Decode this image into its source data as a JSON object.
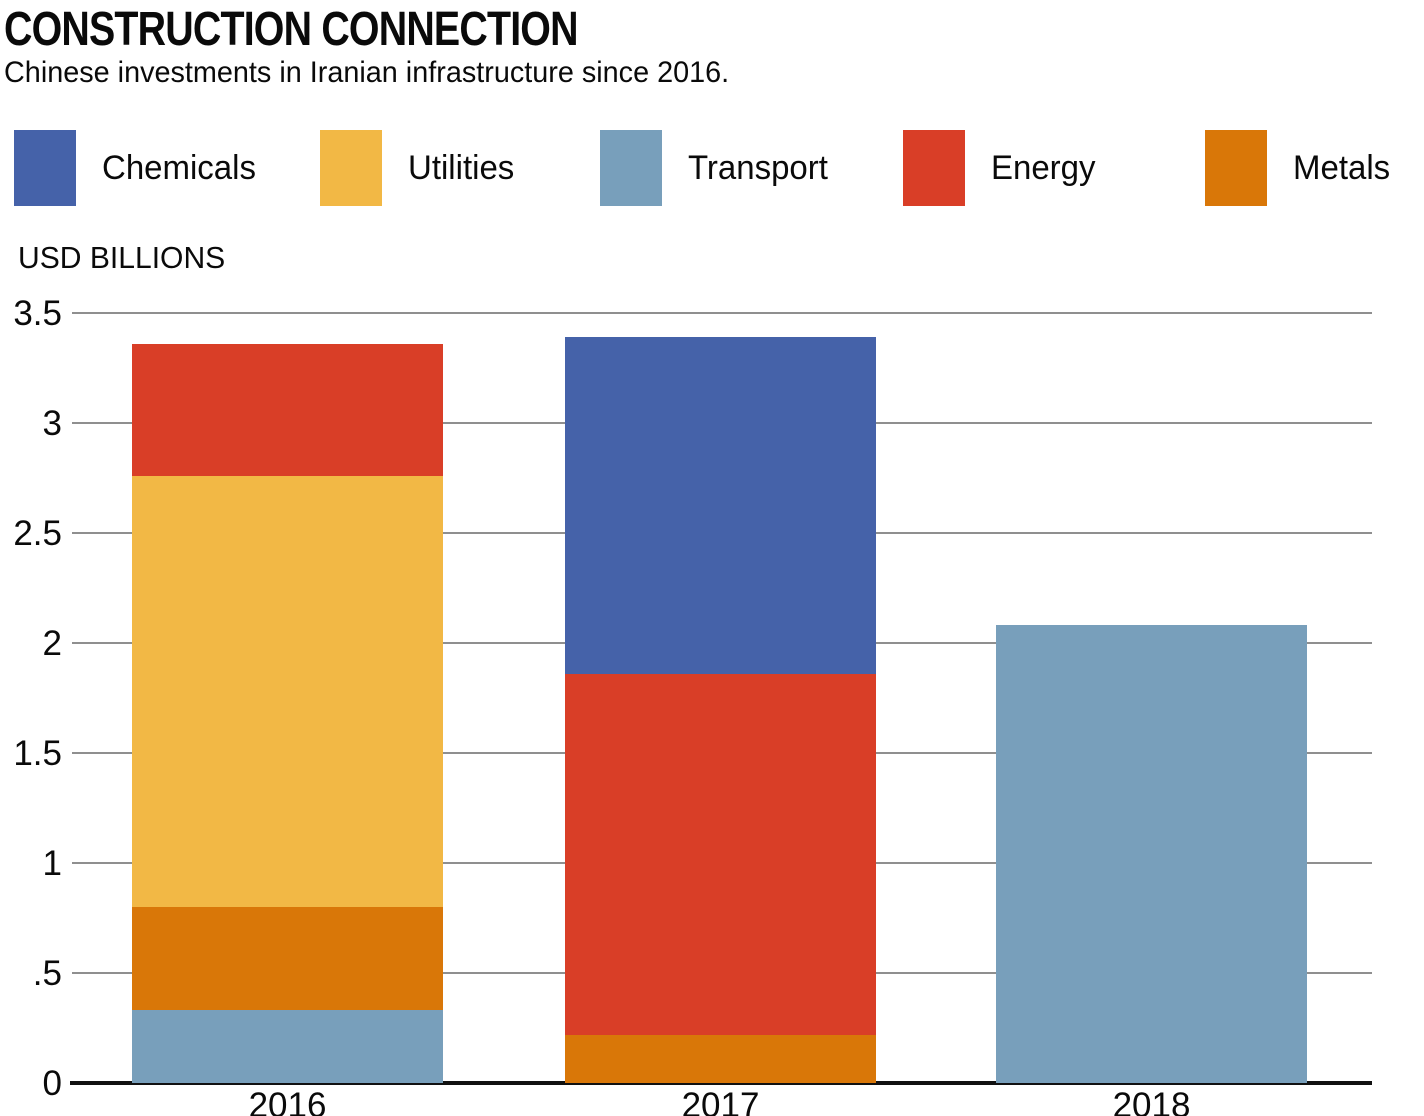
{
  "header": {
    "title": "CONSTRUCTION CONNECTION",
    "subtitle": "Chinese investments in Iranian infrastructure since 2016."
  },
  "chart_data": {
    "type": "stacked-bar",
    "title": "CONSTRUCTION CONNECTION",
    "subtitle": "Chinese investments in Iranian infrastructure since 2016.",
    "ylabel": "USD BILLIONS",
    "ylim": [
      0,
      3.5
    ],
    "ytick_interval": 0.5,
    "ytick_labels": [
      "0",
      ".5",
      "1",
      "1.5",
      "2",
      "2.5",
      "3",
      "3.5"
    ],
    "grid": "horizontal",
    "legend_position": "top",
    "legend": [
      "Chemicals",
      "Utilities",
      "Transport",
      "Energy",
      "Metals"
    ],
    "colors": {
      "Chemicals": "#4562a9",
      "Utilities": "#f2b845",
      "Transport": "#789fbb",
      "Energy": "#d93e27",
      "Metals": "#d97708"
    },
    "categories": [
      "2016",
      "2017",
      "2018"
    ],
    "bars": [
      {
        "category": "2016",
        "total": 3.36,
        "segments": [
          {
            "name": "Transport",
            "value": 0.33
          },
          {
            "name": "Metals",
            "value": 0.47
          },
          {
            "name": "Utilities",
            "value": 1.96
          },
          {
            "name": "Energy",
            "value": 0.6
          }
        ]
      },
      {
        "category": "2017",
        "total": 3.39,
        "segments": [
          {
            "name": "Metals",
            "value": 0.22
          },
          {
            "name": "Energy",
            "value": 1.64
          },
          {
            "name": "Chemicals",
            "value": 1.53
          }
        ]
      },
      {
        "category": "2018",
        "total": 2.08,
        "segments": [
          {
            "name": "Transport",
            "value": 2.08
          }
        ]
      }
    ]
  }
}
